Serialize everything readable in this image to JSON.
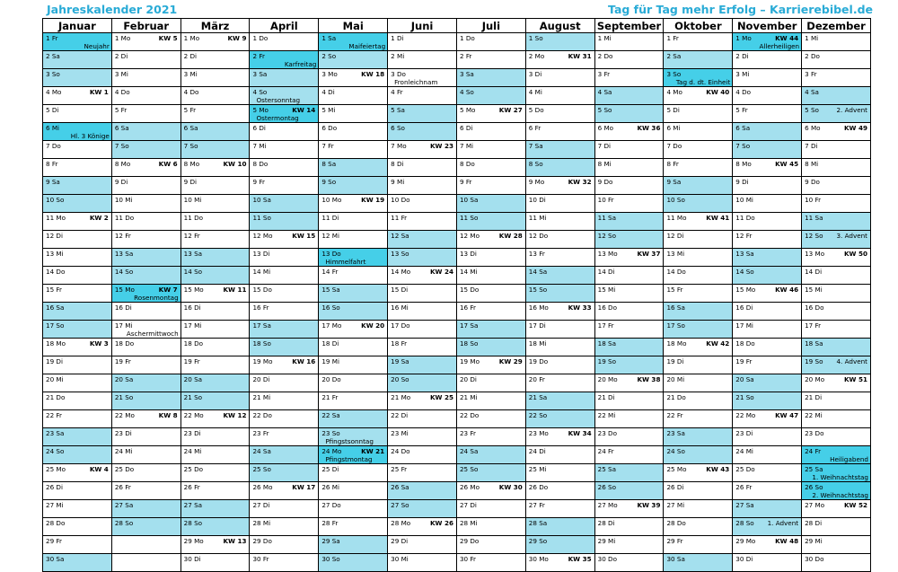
{
  "header": {
    "title_left": "Jahreskalender 2021",
    "title_right": "Tag für Tag mehr Erfolg – Karrierebibel.de"
  },
  "colors": {
    "weekend": "#a4e0ee",
    "holiday": "#45cfe8",
    "title": "#29abd6"
  },
  "months": [
    {
      "name": "Januar",
      "start": 4,
      "days": 31
    },
    {
      "name": "Februar",
      "start": 0,
      "days": 28
    },
    {
      "name": "März",
      "start": 0,
      "days": 31
    },
    {
      "name": "April",
      "start": 3,
      "days": 30
    },
    {
      "name": "Mai",
      "start": 5,
      "days": 31
    },
    {
      "name": "Juni",
      "start": 1,
      "days": 30
    },
    {
      "name": "Juli",
      "start": 3,
      "days": 31
    },
    {
      "name": "August",
      "start": 6,
      "days": 31
    },
    {
      "name": "September",
      "start": 2,
      "days": 30
    },
    {
      "name": "Oktober",
      "start": 4,
      "days": 31
    },
    {
      "name": "November",
      "start": 0,
      "days": 30
    },
    {
      "name": "Dezember",
      "start": 2,
      "days": 31
    }
  ],
  "weekdays": [
    "Mo",
    "Di",
    "Mi",
    "Do",
    "Fr",
    "Sa",
    "So"
  ],
  "visible_days": 30,
  "week_numbers": {
    "0": {
      "4": "KW 1",
      "11": "KW 2",
      "18": "KW 3",
      "25": "KW 4"
    },
    "1": {
      "1": "KW 5",
      "8": "KW 6",
      "15": "KW 7",
      "22": "KW 8"
    },
    "2": {
      "1": "KW 9",
      "8": "KW 10",
      "15": "KW 11",
      "22": "KW 12",
      "29": "KW 13"
    },
    "3": {
      "5": "KW 14",
      "12": "KW 15",
      "19": "KW 16",
      "26": "KW 17"
    },
    "4": {
      "3": "KW 18",
      "10": "KW 19",
      "17": "KW 20",
      "24": "KW 21"
    },
    "5": {
      "7": "KW 23",
      "14": "KW 24",
      "21": "KW 25",
      "28": "KW 26"
    },
    "6": {
      "5": "KW 27",
      "12": "KW 28",
      "19": "KW 29",
      "26": "KW 30"
    },
    "7": {
      "2": "KW 31",
      "9": "KW 32",
      "16": "KW 33",
      "23": "KW 34",
      "30": "KW 35"
    },
    "8": {
      "6": "KW 36",
      "13": "KW 37",
      "20": "KW 38",
      "27": "KW 39"
    },
    "9": {
      "4": "KW 40",
      "11": "KW 41",
      "18": "KW 42",
      "25": "KW 43"
    },
    "10": {
      "1": "KW 44",
      "8": "KW 45",
      "15": "KW 46",
      "22": "KW 47",
      "29": "KW 48"
    },
    "11": {
      "6": "KW 49",
      "13": "KW 50",
      "20": "KW 51",
      "27": "KW 52"
    }
  },
  "holidays": {
    "0": {
      "1": "Neujahr",
      "6": "Hl. 3 Könige"
    },
    "1": {
      "15": "Rosenmontag",
      "17": "Aschermittwoch"
    },
    "3": {
      "2": "Karfreitag",
      "4": "Ostersonntag",
      "5": "Ostermontag"
    },
    "4": {
      "1": "Maifeiertag",
      "13": "Himmelfahrt",
      "23": "Pfingstsonntag",
      "24": "Pfingstmontag"
    },
    "5": {
      "3": "Fronleichnam"
    },
    "9": {
      "3": "Tag d. dt. Einheit"
    },
    "10": {
      "1": "Allerheiligen"
    },
    "11": {
      "24": "Heiligabend",
      "25": "1. Weihnachtstag",
      "26": "2. Weihnachtstag"
    }
  },
  "advents": {
    "10": {
      "28": "1. Advent"
    },
    "11": {
      "5": "2. Advent",
      "12": "3. Advent",
      "19": "4. Advent"
    }
  },
  "highlight_holidays": {
    "0": [
      1,
      6
    ],
    "1": [
      15
    ],
    "3": [
      2,
      5
    ],
    "4": [
      1,
      13,
      24
    ],
    "9": [
      3
    ],
    "10": [
      1
    ],
    "11": [
      24,
      25,
      26
    ]
  }
}
